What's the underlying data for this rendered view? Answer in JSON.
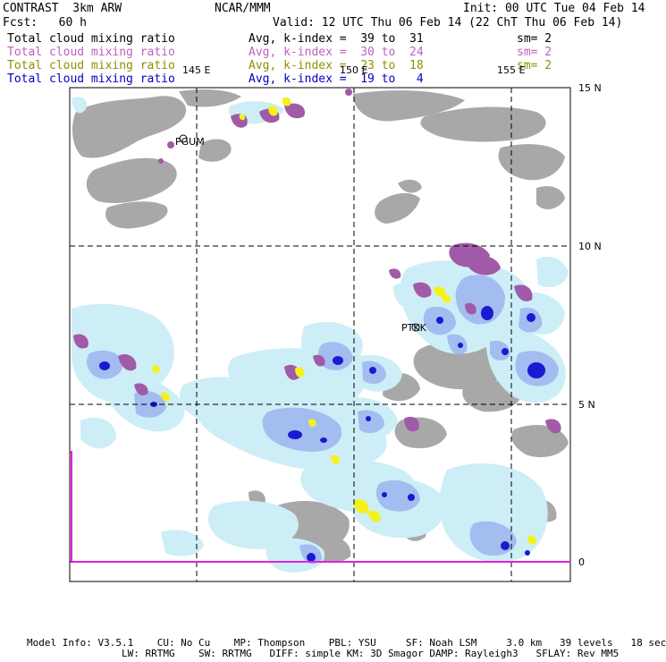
{
  "header": {
    "model": "CONTRAST  3km ARW",
    "center": "NCAR/MMM",
    "init": "Init: 00 UTC Tue 04 Feb 14",
    "fcst": "Fcst:   60 h",
    "valid": "Valid: 12 UTC Thu 06 Feb 14 (22 ChT Thu 06 Feb 14)"
  },
  "fields": [
    {
      "name": "Total cloud mixing ratio",
      "range": "Avg, k-index =  39 to  31",
      "sm": "sm= 2",
      "color": "#000000"
    },
    {
      "name": "Total cloud mixing ratio",
      "range": "Avg, k-index =  30 to  24",
      "sm": "sm= 2",
      "color": "#c060c0"
    },
    {
      "name": "Total cloud mixing ratio",
      "range": "Avg, k-index =  23 to  18",
      "sm": "sm= 2",
      "color": "#909000"
    },
    {
      "name": "Total cloud mixing ratio",
      "range": "Avg, k-index =  19 to   4",
      "sm": "",
      "color": "#0000c0"
    }
  ],
  "map": {
    "lon_labels": [
      "145 E",
      "150 E",
      "155 E"
    ],
    "lat_labels": [
      "15 N",
      "10 N",
      "5 N",
      "0"
    ],
    "stations": [
      "PGUM",
      "PTKK"
    ]
  },
  "footer": {
    "line1": "Model Info: V3.5.1    CU: No Cu    MP: Thompson    PBL: YSU     SF: Noah LSM     3.0 km   39 levels   18 sec",
    "line2": "                LW: RRTMG    SW: RRTMG   DIFF: simple KM: 3D Smagor DAMP: Rayleigh3   SFLAY: Rev MM5"
  }
}
